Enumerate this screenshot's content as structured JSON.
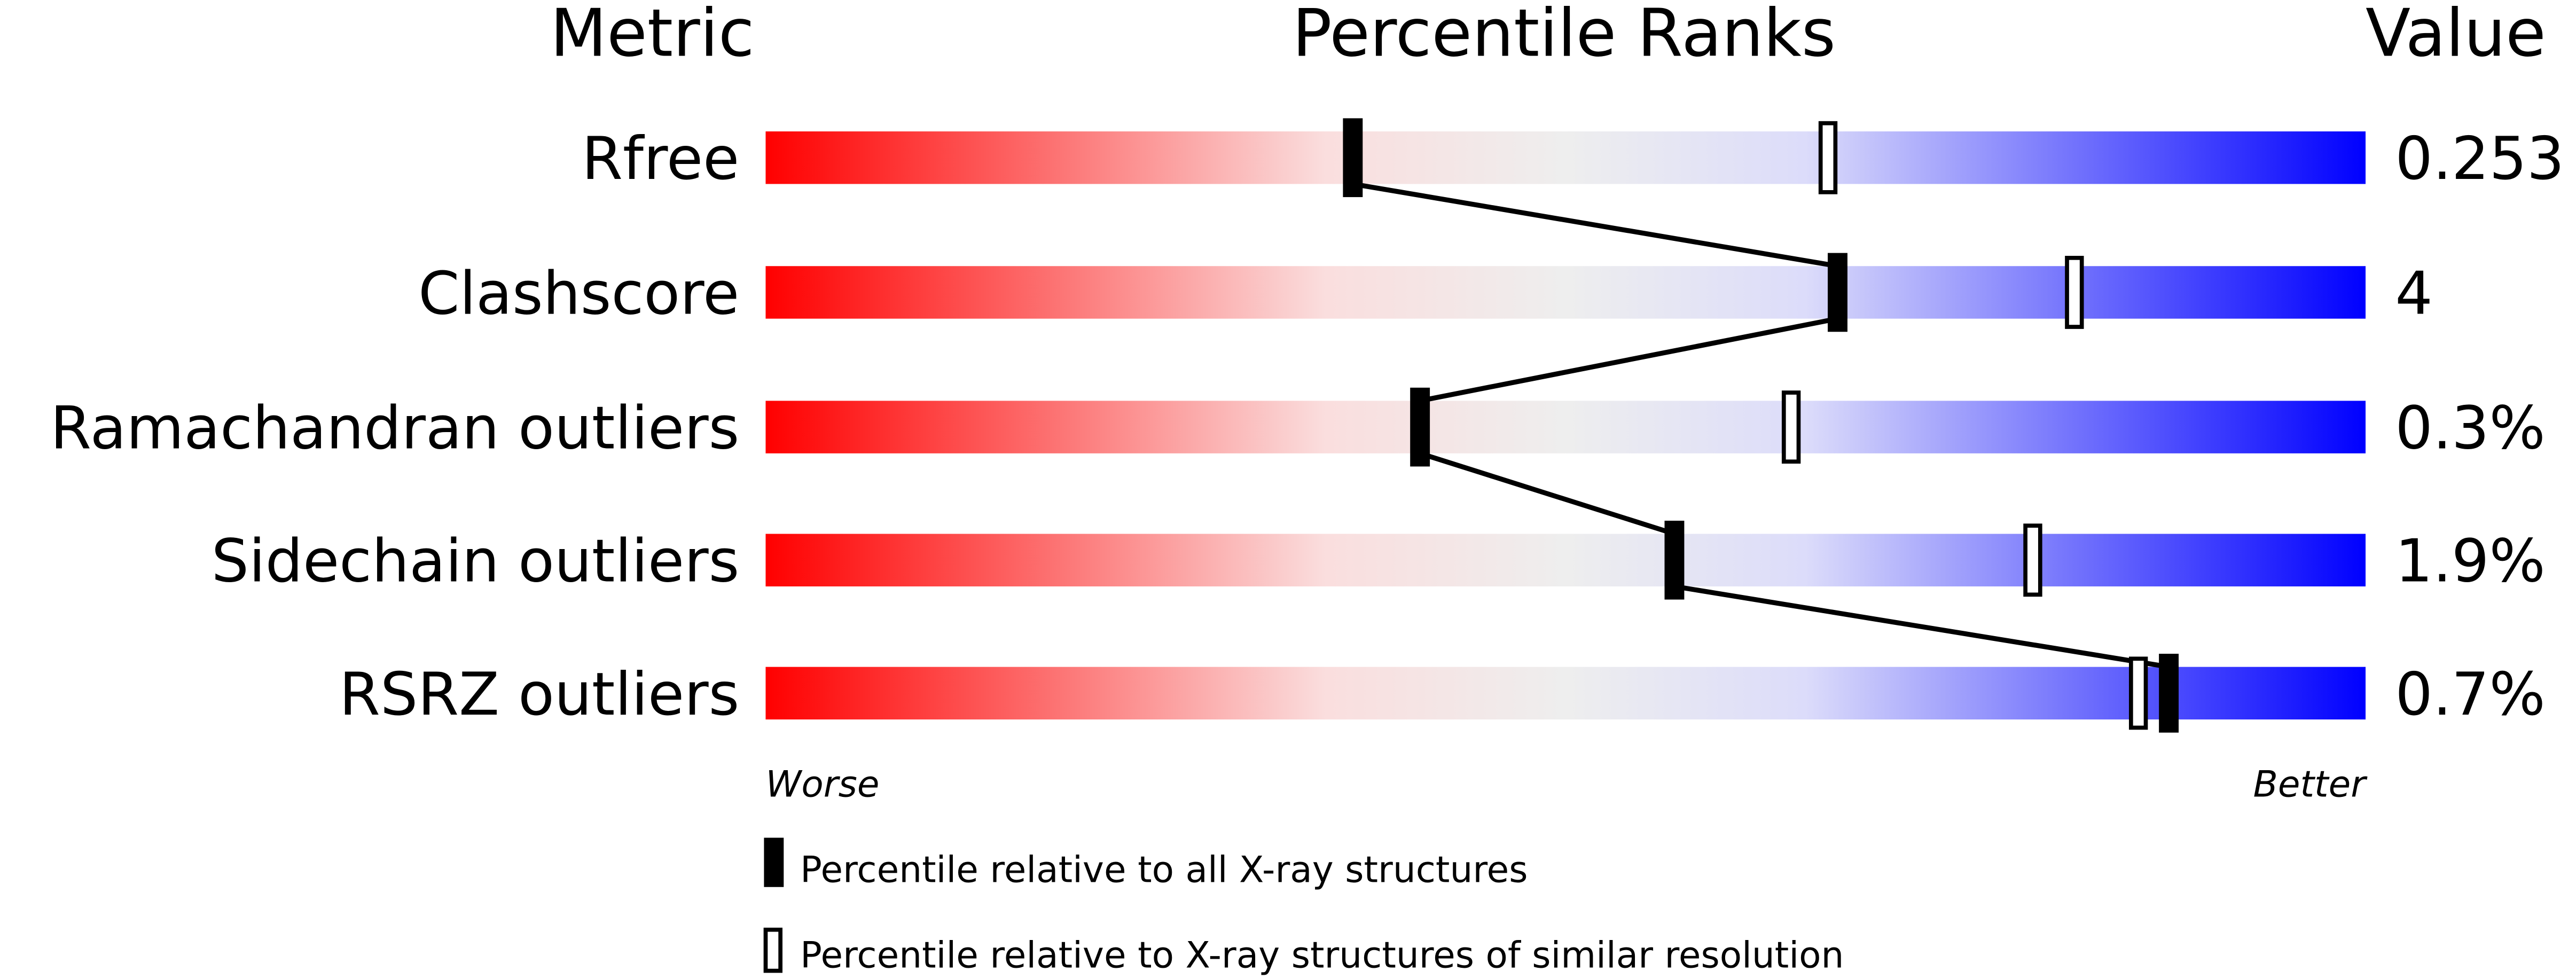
{
  "chart_data": {
    "type": "percentile-slider",
    "headers": {
      "metric": "Metric",
      "ranks": "Percentile Ranks",
      "value": "Value"
    },
    "xlim": [
      0,
      100
    ],
    "axis_labels": {
      "worse": "Worse",
      "better": "Better"
    },
    "metrics": [
      {
        "name": "Rfree",
        "value": "0.253",
        "percentile_all": 36.7,
        "percentile_similar": 66.4
      },
      {
        "name": "Clashscore",
        "value": "4",
        "percentile_all": 67.0,
        "percentile_similar": 81.8
      },
      {
        "name": "Ramachandran outliers",
        "value": "0.3%",
        "percentile_all": 40.9,
        "percentile_similar": 64.1
      },
      {
        "name": "Sidechain outliers",
        "value": "1.9%",
        "percentile_all": 56.8,
        "percentile_similar": 79.2
      },
      {
        "name": "RSRZ outliers",
        "value": "0.7%",
        "percentile_all": 87.7,
        "percentile_similar": 85.8
      }
    ],
    "legend": {
      "all": "Percentile relative to all X-ray structures",
      "similar": "Percentile relative to X-ray structures of similar resolution"
    },
    "colors": {
      "worse": "#ff0000",
      "mid": "#eeeeee",
      "better": "#0000ff",
      "marker": "#000000"
    }
  }
}
